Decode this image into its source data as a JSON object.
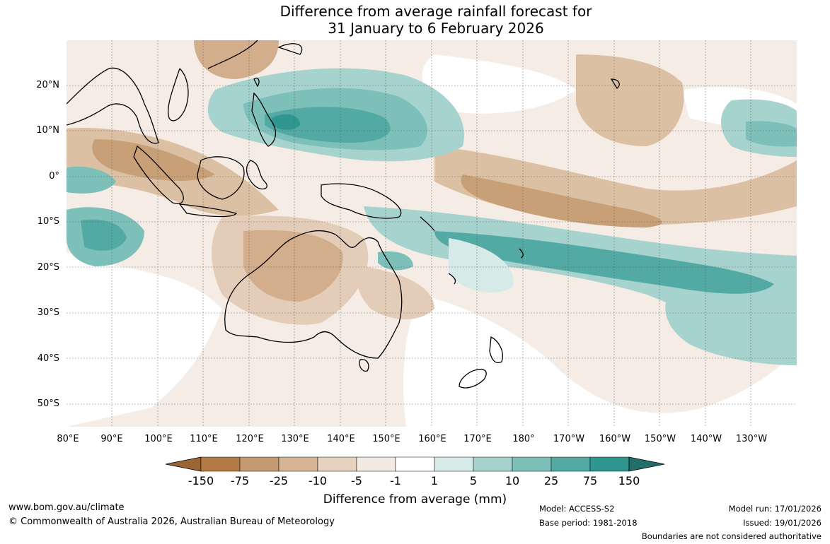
{
  "title": {
    "line1": "Difference from average rainfall forecast for",
    "line2": "31 January to 6 February 2026"
  },
  "axes": {
    "lat_labels": [
      "20°N",
      "10°N",
      "0°",
      "10°S",
      "20°S",
      "30°S",
      "40°S",
      "50°S"
    ],
    "lon_labels": [
      "80°E",
      "90°E",
      "100°E",
      "110°E",
      "120°E",
      "130°E",
      "140°E",
      "150°E",
      "160°E",
      "170°E",
      "180°",
      "170°W",
      "160°W",
      "150°W",
      "140°W",
      "130°W"
    ]
  },
  "legend": {
    "ticks": [
      "-150",
      "-75",
      "-25",
      "-10",
      "-5",
      "-1",
      "1",
      "5",
      "10",
      "25",
      "75",
      "150"
    ],
    "colors": [
      "#9a6535",
      "#b37a45",
      "#c49a72",
      "#d5b596",
      "#e6d2be",
      "#f3ebe3",
      "#ffffff",
      "#d6ebe8",
      "#a6d3ce",
      "#7dbfb9",
      "#53aaa4",
      "#2f9690",
      "#226e6a"
    ],
    "label": "Difference from average (mm)"
  },
  "footer": {
    "url": "www.bom.gov.au/climate",
    "copyright": "© Commonwealth of Australia 2026, Australian Bureau of Meteorology",
    "model": "Model: ACCESS-S2",
    "base_period": "Base period: 1981-2018",
    "model_run": "Model run: 17/01/2026",
    "issued": "Issued: 19/01/2026",
    "disclaimer": "Boundaries are not considered authoritative"
  }
}
